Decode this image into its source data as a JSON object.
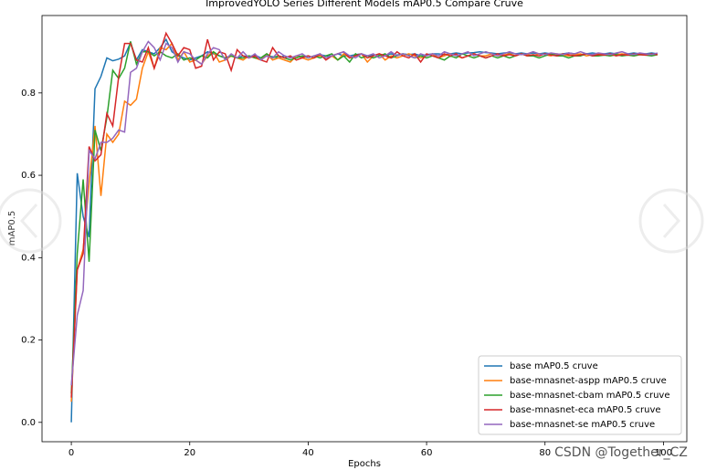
{
  "chart_data": {
    "type": "line",
    "title": "ImprovedYOLO Series Different Models mAP0.5 Compare Cruve",
    "xlabel": "Epochs",
    "ylabel": "mAP0.5",
    "x": [
      0,
      1,
      2,
      3,
      4,
      5,
      6,
      7,
      8,
      9,
      10,
      11,
      12,
      13,
      14,
      15,
      16,
      17,
      18,
      19,
      20,
      21,
      22,
      23,
      24,
      25,
      26,
      27,
      28,
      29,
      30,
      31,
      32,
      33,
      34,
      35,
      36,
      37,
      38,
      39,
      40,
      41,
      42,
      43,
      44,
      45,
      46,
      47,
      48,
      49,
      50,
      51,
      52,
      53,
      54,
      55,
      56,
      57,
      58,
      59,
      60,
      61,
      62,
      63,
      64,
      65,
      66,
      67,
      68,
      69,
      70,
      71,
      72,
      73,
      74,
      75,
      76,
      77,
      78,
      79,
      80,
      81,
      82,
      83,
      84,
      85,
      86,
      87,
      88,
      89,
      90,
      91,
      92,
      93,
      94,
      95,
      96,
      97,
      98,
      99
    ],
    "xlim": [
      -4.95,
      103.95
    ],
    "xticks": [
      0,
      20,
      40,
      60,
      80,
      100
    ],
    "ylim": [
      -0.047,
      0.988
    ],
    "yticks": [
      {
        "value": 0,
        "label": "0.0"
      },
      0.2,
      0.4,
      0.6,
      0.8
    ],
    "grid": false,
    "legend": "lower right",
    "series": [
      {
        "name": "base mAP0.5 cruve",
        "color": "#1f77b4",
        "values": [
          0.0,
          0.605,
          0.5,
          0.45,
          0.81,
          0.84,
          0.885,
          0.878,
          0.882,
          0.89,
          0.922,
          0.88,
          0.905,
          0.9,
          0.895,
          0.91,
          0.93,
          0.9,
          0.89,
          0.885,
          0.88,
          0.885,
          0.89,
          0.9,
          0.895,
          0.89,
          0.885,
          0.89,
          0.885,
          0.89,
          0.888,
          0.892,
          0.885,
          0.89,
          0.888,
          0.885,
          0.89,
          0.885,
          0.89,
          0.888,
          0.89,
          0.885,
          0.893,
          0.89,
          0.89,
          0.895,
          0.89,
          0.89,
          0.893,
          0.895,
          0.89,
          0.892,
          0.893,
          0.89,
          0.895,
          0.892,
          0.895,
          0.893,
          0.895,
          0.89,
          0.893,
          0.895,
          0.895,
          0.893,
          0.895,
          0.897,
          0.895,
          0.897,
          0.898,
          0.9,
          0.898,
          0.897,
          0.895,
          0.897,
          0.898,
          0.895,
          0.897,
          0.895,
          0.897,
          0.895,
          0.897,
          0.895,
          0.893,
          0.895,
          0.897,
          0.895,
          0.893,
          0.895,
          0.897,
          0.895,
          0.895,
          0.897,
          0.895,
          0.893,
          0.895,
          0.897,
          0.895,
          0.895,
          0.897,
          0.895
        ]
      },
      {
        "name": "base-mnasnet-aspp mAP0.5 cruve",
        "color": "#ff7f0e",
        "values": [
          0.05,
          0.37,
          0.42,
          0.58,
          0.72,
          0.55,
          0.7,
          0.68,
          0.7,
          0.78,
          0.77,
          0.785,
          0.86,
          0.9,
          0.86,
          0.91,
          0.905,
          0.92,
          0.88,
          0.9,
          0.875,
          0.88,
          0.87,
          0.89,
          0.9,
          0.875,
          0.88,
          0.89,
          0.885,
          0.88,
          0.89,
          0.885,
          0.88,
          0.895,
          0.88,
          0.885,
          0.88,
          0.875,
          0.89,
          0.885,
          0.88,
          0.885,
          0.89,
          0.885,
          0.89,
          0.88,
          0.895,
          0.885,
          0.89,
          0.895,
          0.875,
          0.89,
          0.895,
          0.88,
          0.89,
          0.885,
          0.89,
          0.895,
          0.89,
          0.885,
          0.89,
          0.895,
          0.885,
          0.89,
          0.895,
          0.89,
          0.885,
          0.89,
          0.895,
          0.89,
          0.89,
          0.895,
          0.89,
          0.892,
          0.895,
          0.89,
          0.895,
          0.893,
          0.89,
          0.895,
          0.893,
          0.89,
          0.895,
          0.893,
          0.89,
          0.893,
          0.895,
          0.89,
          0.893,
          0.895,
          0.893,
          0.89,
          0.893,
          0.895,
          0.893,
          0.89,
          0.893,
          0.895,
          0.893,
          0.893
        ]
      },
      {
        "name": "base-mnasnet-cbam mAP0.5 cruve",
        "color": "#2ca02c",
        "values": [
          0.07,
          0.41,
          0.59,
          0.39,
          0.71,
          0.66,
          0.74,
          0.855,
          0.835,
          0.86,
          0.925,
          0.87,
          0.9,
          0.9,
          0.89,
          0.9,
          0.89,
          0.885,
          0.895,
          0.88,
          0.885,
          0.88,
          0.89,
          0.885,
          0.9,
          0.89,
          0.885,
          0.89,
          0.885,
          0.885,
          0.89,
          0.885,
          0.885,
          0.895,
          0.885,
          0.89,
          0.885,
          0.88,
          0.885,
          0.89,
          0.885,
          0.89,
          0.885,
          0.89,
          0.895,
          0.88,
          0.89,
          0.875,
          0.895,
          0.885,
          0.89,
          0.885,
          0.89,
          0.895,
          0.885,
          0.89,
          0.895,
          0.89,
          0.885,
          0.89,
          0.885,
          0.89,
          0.885,
          0.88,
          0.89,
          0.885,
          0.895,
          0.89,
          0.885,
          0.89,
          0.885,
          0.89,
          0.885,
          0.89,
          0.885,
          0.89,
          0.895,
          0.89,
          0.89,
          0.885,
          0.89,
          0.895,
          0.89,
          0.89,
          0.885,
          0.89,
          0.89,
          0.895,
          0.89,
          0.89,
          0.892,
          0.89,
          0.893,
          0.89,
          0.892,
          0.89,
          0.893,
          0.892,
          0.89,
          0.893
        ]
      },
      {
        "name": "base-mnasnet-eca mAP0.5 cruve",
        "color": "#d62728",
        "values": [
          0.06,
          0.37,
          0.41,
          0.67,
          0.635,
          0.65,
          0.75,
          0.72,
          0.84,
          0.92,
          0.92,
          0.88,
          0.875,
          0.91,
          0.86,
          0.9,
          0.945,
          0.92,
          0.89,
          0.91,
          0.905,
          0.86,
          0.865,
          0.93,
          0.88,
          0.9,
          0.895,
          0.855,
          0.905,
          0.89,
          0.885,
          0.89,
          0.88,
          0.875,
          0.91,
          0.89,
          0.885,
          0.89,
          0.88,
          0.885,
          0.89,
          0.885,
          0.895,
          0.88,
          0.89,
          0.895,
          0.9,
          0.885,
          0.89,
          0.895,
          0.885,
          0.89,
          0.895,
          0.89,
          0.885,
          0.9,
          0.89,
          0.885,
          0.895,
          0.875,
          0.895,
          0.89,
          0.885,
          0.895,
          0.89,
          0.895,
          0.885,
          0.89,
          0.895,
          0.89,
          0.885,
          0.89,
          0.895,
          0.89,
          0.893,
          0.89,
          0.895,
          0.89,
          0.893,
          0.89,
          0.895,
          0.892,
          0.89,
          0.895,
          0.893,
          0.89,
          0.892,
          0.895,
          0.89,
          0.893,
          0.892,
          0.895,
          0.89,
          0.893,
          0.892,
          0.895,
          0.893,
          0.892,
          0.895,
          0.893
        ]
      },
      {
        "name": "base-mnasnet-se mAP0.5 cruve",
        "color": "#9467bd",
        "values": [
          0.09,
          0.26,
          0.32,
          0.66,
          0.64,
          0.68,
          0.68,
          0.69,
          0.71,
          0.705,
          0.85,
          0.86,
          0.9,
          0.925,
          0.91,
          0.88,
          0.92,
          0.91,
          0.875,
          0.9,
          0.895,
          0.88,
          0.87,
          0.895,
          0.91,
          0.905,
          0.88,
          0.895,
          0.885,
          0.9,
          0.885,
          0.895,
          0.88,
          0.89,
          0.885,
          0.9,
          0.89,
          0.885,
          0.89,
          0.895,
          0.885,
          0.89,
          0.895,
          0.885,
          0.89,
          0.895,
          0.9,
          0.89,
          0.885,
          0.895,
          0.89,
          0.895,
          0.885,
          0.89,
          0.9,
          0.89,
          0.895,
          0.89,
          0.885,
          0.895,
          0.89,
          0.895,
          0.89,
          0.9,
          0.895,
          0.89,
          0.895,
          0.9,
          0.89,
          0.895,
          0.9,
          0.895,
          0.89,
          0.895,
          0.9,
          0.895,
          0.893,
          0.895,
          0.9,
          0.895,
          0.893,
          0.897,
          0.895,
          0.893,
          0.897,
          0.895,
          0.9,
          0.895,
          0.893,
          0.897,
          0.895,
          0.893,
          0.897,
          0.9,
          0.895,
          0.893,
          0.897,
          0.895,
          0.893,
          0.897
        ]
      }
    ],
    "watermark": "CSDN @Together_CZ"
  }
}
